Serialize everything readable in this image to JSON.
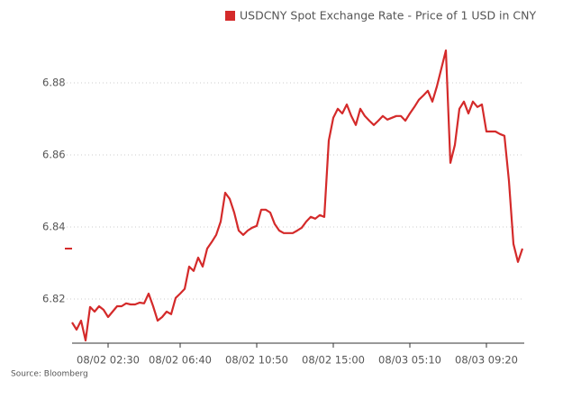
{
  "chart_data": {
    "type": "line",
    "source": "Source: Bloomberg",
    "categories": [
      null,
      null,
      null,
      null,
      null,
      null,
      null,
      null,
      "08/02 02:30",
      null,
      null,
      null,
      null,
      null,
      null,
      null,
      null,
      null,
      null,
      null,
      null,
      null,
      null,
      null,
      "08/02 06:40",
      null,
      null,
      null,
      null,
      null,
      null,
      null,
      null,
      null,
      null,
      null,
      null,
      null,
      null,
      null,
      null,
      "08/02 10:50",
      null,
      null,
      null,
      null,
      null,
      null,
      null,
      null,
      null,
      null,
      null,
      null,
      null,
      null,
      null,
      null,
      "08/02 15:00",
      null,
      null,
      null,
      null,
      null,
      null,
      null,
      null,
      null,
      null,
      null,
      null,
      null,
      null,
      null,
      null,
      "08/03 05:10",
      null,
      null,
      null,
      null,
      null,
      null,
      null,
      null,
      null,
      null,
      null,
      null,
      null,
      null,
      null,
      null,
      "08/03 09:20",
      null,
      null,
      null,
      null,
      null,
      null,
      null,
      null
    ],
    "series": [
      {
        "name": "USDCNY Spot Exchange Rate - Price of 1 USD in CNY",
        "color": "#d42a2a",
        "values": [
          6.8135,
          6.8115,
          6.814,
          6.8085,
          6.8178,
          6.8165,
          6.818,
          6.817,
          6.815,
          6.8165,
          6.818,
          6.818,
          6.8188,
          6.8185,
          6.8185,
          6.819,
          6.8188,
          6.8215,
          6.818,
          6.814,
          6.815,
          6.8165,
          6.8158,
          6.8203,
          6.8215,
          6.8228,
          6.829,
          6.8278,
          6.8315,
          6.829,
          6.834,
          6.8358,
          6.8378,
          6.8415,
          6.8495,
          6.8478,
          6.844,
          6.839,
          6.8378,
          6.839,
          6.8398,
          6.8403,
          6.8448,
          6.8448,
          6.844,
          6.8408,
          6.839,
          6.8383,
          6.8383,
          6.8383,
          6.839,
          6.8398,
          6.8415,
          6.8428,
          6.8423,
          6.8433,
          6.8428,
          6.864,
          6.8703,
          6.8728,
          6.8715,
          6.874,
          6.8708,
          6.8683,
          6.8728,
          6.8708,
          6.8695,
          6.8683,
          6.8695,
          6.8708,
          6.8698,
          6.8703,
          6.8708,
          6.8708,
          6.8695,
          6.8715,
          6.8733,
          6.8753,
          6.8765,
          6.8778,
          6.8748,
          6.879,
          6.884,
          6.889,
          6.8578,
          6.8628,
          6.8728,
          6.8748,
          6.8715,
          6.8748,
          6.8733,
          6.874,
          6.8665,
          6.8665,
          6.8665,
          6.8658,
          6.8653,
          6.8528,
          6.8353,
          6.8303,
          6.834
        ]
      }
    ],
    "ylim": [
      6.808,
      6.895
    ],
    "yticks": [
      6.82,
      6.84,
      6.86,
      6.88
    ],
    "grid": true
  }
}
